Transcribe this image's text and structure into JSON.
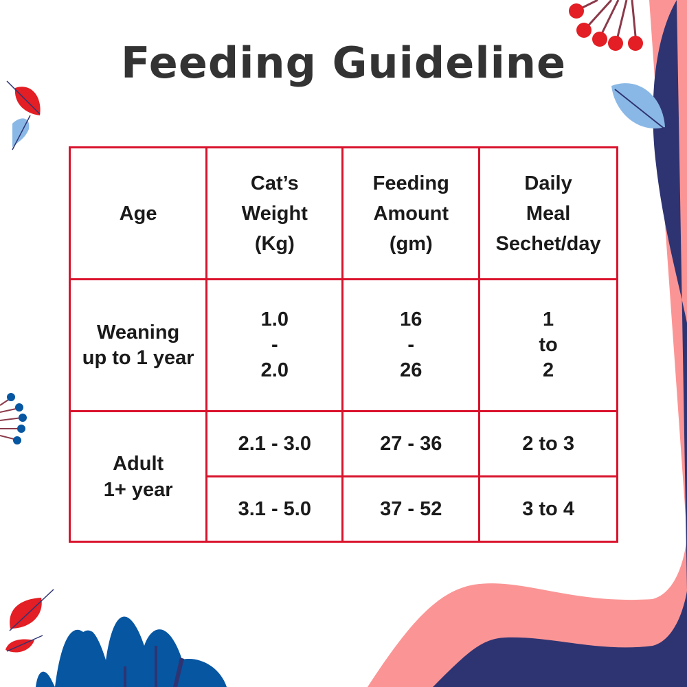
{
  "title": "Feeding Guideline",
  "colors": {
    "border": "#d9132c",
    "pink": "#fb9595",
    "navy": "#2e3472",
    "blue": "#0656a2",
    "berry": "#e31e24",
    "leaf_blue": "#8ab8e6"
  },
  "table": {
    "headers": [
      [
        "Age"
      ],
      [
        "Cat’s",
        "Weight",
        "(Kg)"
      ],
      [
        "Feeding",
        "Amount",
        "(gm)"
      ],
      [
        "Daily",
        "Meal",
        "Sechet/day"
      ]
    ],
    "weaning": {
      "age": [
        "Weaning",
        "up to 1 year"
      ],
      "weight": [
        "1.0",
        "-",
        "2.0"
      ],
      "amount": [
        "16",
        "-",
        "26"
      ],
      "meal": [
        "1",
        "to",
        "2"
      ]
    },
    "adult": {
      "age": [
        "Adult",
        "1+ year"
      ],
      "rows": [
        {
          "weight": "2.1 - 3.0",
          "amount": "27 - 36",
          "meal": "2 to 3"
        },
        {
          "weight": "3.1 - 5.0",
          "amount": "37 - 52",
          "meal": "3 to 4"
        }
      ]
    }
  }
}
